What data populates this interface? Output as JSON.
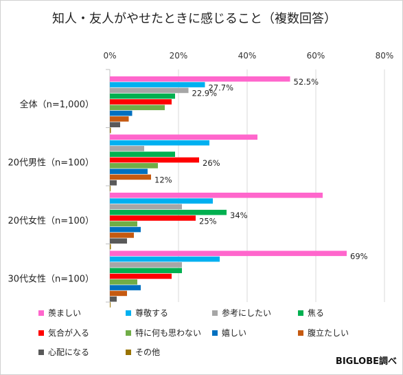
{
  "title": "知人・友人がやせたときに感じること（複数回答）",
  "credit": "BIGLOBE調べ",
  "chart_data": {
    "type": "bar",
    "orientation": "horizontal",
    "title": "知人・友人がやせたときに感じること（複数回答）",
    "xlim": [
      0,
      80
    ],
    "xticks": [
      0,
      20,
      40,
      60,
      80
    ],
    "tick_suffix": "%",
    "grid": true,
    "legend_position": "bottom",
    "categories": [
      "全体（n=1,000）",
      "20代男性（n=100）",
      "20代女性（n=100）",
      "30代女性（n=100）"
    ],
    "series": [
      {
        "name": "羨ましい",
        "color": "#ff66cc",
        "values": [
          52.5,
          43,
          62,
          69
        ]
      },
      {
        "name": "尊敬する",
        "color": "#00b0f0",
        "values": [
          27.7,
          29,
          30,
          32
        ]
      },
      {
        "name": "参考にしたい",
        "color": "#a6a6a6",
        "values": [
          22.9,
          10,
          21,
          21
        ]
      },
      {
        "name": "焦る",
        "color": "#00b050",
        "values": [
          19,
          19,
          34,
          21
        ]
      },
      {
        "name": "気合が入る",
        "color": "#ff0000",
        "values": [
          18,
          26,
          25,
          18
        ]
      },
      {
        "name": "特に何も思わない",
        "color": "#70ad47",
        "values": [
          16,
          14,
          8,
          8
        ]
      },
      {
        "name": "嬉しい",
        "color": "#0070c0",
        "values": [
          6.5,
          11,
          9,
          9
        ]
      },
      {
        "name": "腹立たしい",
        "color": "#c55a11",
        "values": [
          5.5,
          12,
          7,
          5
        ]
      },
      {
        "name": "心配になる",
        "color": "#595959",
        "values": [
          3,
          2,
          5,
          2
        ]
      },
      {
        "name": "その他",
        "color": "#997300",
        "values": [
          0.3,
          0.2,
          0.3,
          0.2
        ]
      }
    ],
    "data_labels": [
      {
        "category": 0,
        "series": 0,
        "text": "52.5%"
      },
      {
        "category": 0,
        "series": 1,
        "text": "27.7%"
      },
      {
        "category": 0,
        "series": 2,
        "text": "22.9%"
      },
      {
        "category": 1,
        "series": 4,
        "text": "26%"
      },
      {
        "category": 1,
        "series": 7,
        "text": "12%"
      },
      {
        "category": 2,
        "series": 3,
        "text": "34%"
      },
      {
        "category": 2,
        "series": 4,
        "text": "25%"
      },
      {
        "category": 3,
        "series": 0,
        "text": "69%"
      }
    ]
  }
}
